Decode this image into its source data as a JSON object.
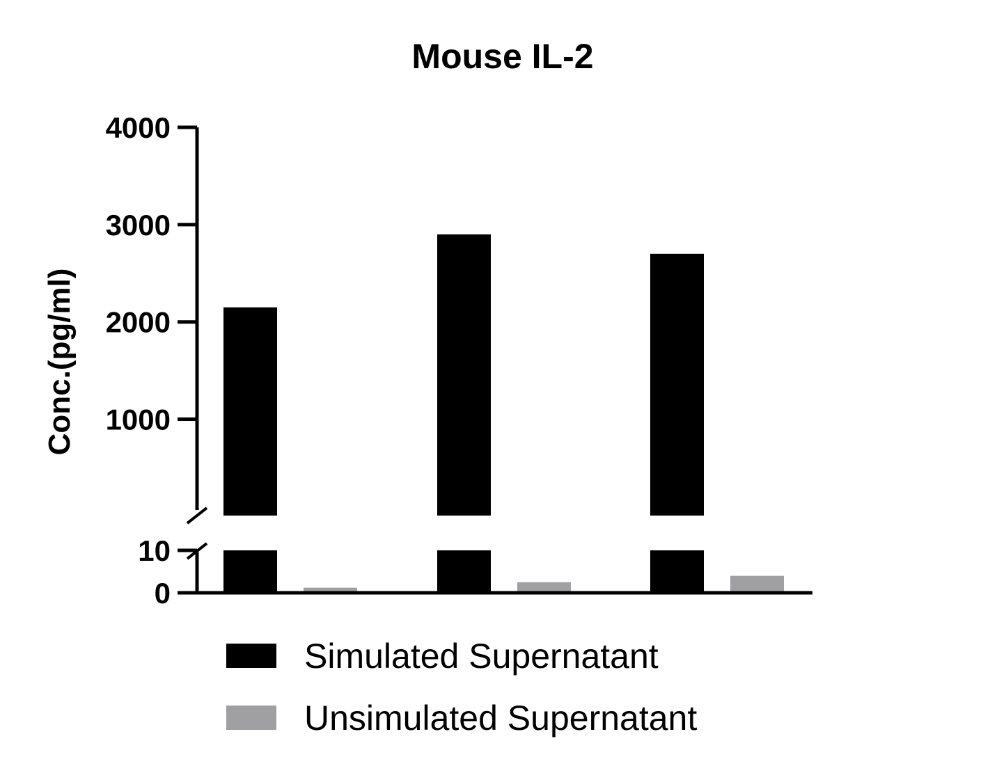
{
  "chart_data": {
    "type": "bar",
    "title": "Mouse IL-2",
    "xlabel": "",
    "ylabel": "Conc.(pg/ml)",
    "categories": [
      "",
      "",
      ""
    ],
    "series": [
      {
        "name": "Simulated Supernatant",
        "values": [
          2150,
          2900,
          2700
        ],
        "color": "#000000"
      },
      {
        "name": "Unsimulated Supernatant",
        "values": [
          1.2,
          2.5,
          4.0
        ],
        "color": "#a0a0a3"
      }
    ],
    "axis_break": {
      "lower_segment": {
        "range": [
          0,
          10
        ],
        "ticks": [
          0,
          10
        ],
        "tick_labels": [
          "0",
          "10"
        ]
      },
      "upper_segment": {
        "range": [
          10,
          4000
        ],
        "ticks": [
          1000,
          2000,
          3000,
          4000
        ],
        "tick_labels": [
          "1000",
          "2000",
          "3000",
          "4000"
        ]
      }
    },
    "grid": false,
    "legend_position": "bottom"
  }
}
